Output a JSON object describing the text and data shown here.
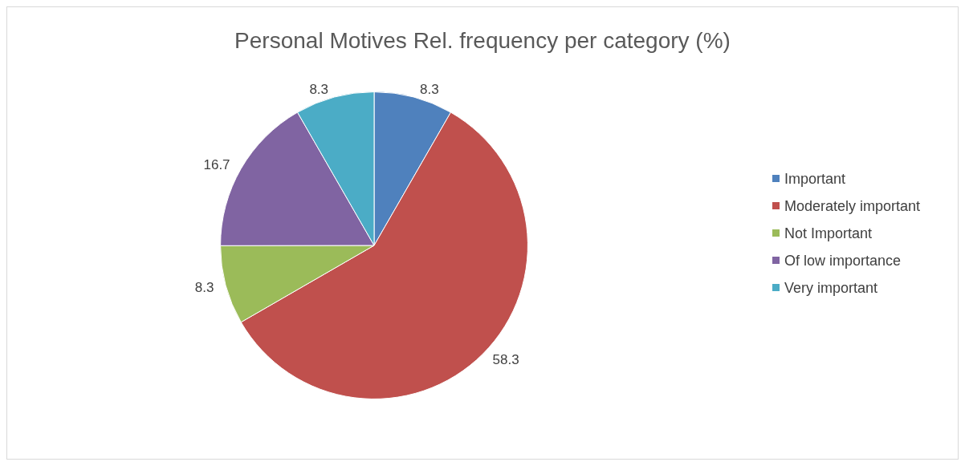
{
  "chart_data": {
    "type": "pie",
    "title": "Personal Motives Rel. frequency per category (%)",
    "categories": [
      "Important",
      "Moderately important",
      "Not Important",
      "Of low importance",
      "Very important"
    ],
    "values": [
      8.3,
      58.3,
      8.3,
      16.7,
      8.3
    ],
    "colors": [
      "#4f81bd",
      "#c0504d",
      "#9bbb59",
      "#8064a2",
      "#4bacc6"
    ],
    "data_labels": true,
    "legend": "right"
  }
}
